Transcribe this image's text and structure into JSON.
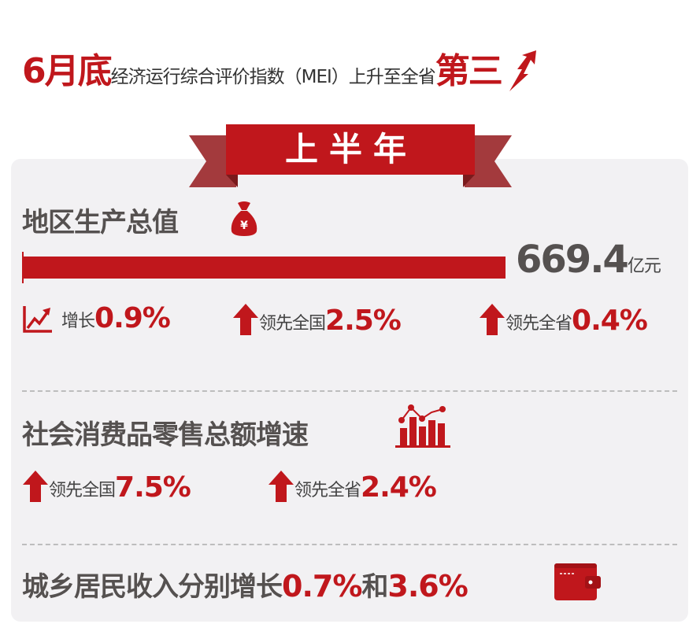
{
  "header": {
    "prefix": "6月底",
    "middle": "经济运行综合评价指数（MEI）上升至全省",
    "rank": "第三",
    "icon": "rising-arrow-icon"
  },
  "ribbon": {
    "label": "上半年"
  },
  "gdp": {
    "title": "地区生产总值",
    "icon": "money-bag-icon",
    "value": "669.4",
    "unit": "亿元",
    "stats": [
      {
        "icon": "trend-chart-icon",
        "label": "增长",
        "value": "0.9%"
      },
      {
        "icon": "arrow-up-icon",
        "label": "领先全国",
        "value": "2.5%"
      },
      {
        "icon": "arrow-up-icon",
        "label": "领先全省",
        "value": "0.4%"
      }
    ]
  },
  "retail": {
    "title": "社会消费品零售总额增速",
    "icon": "bar-line-chart-icon",
    "stats": [
      {
        "icon": "arrow-up-icon",
        "label": "领先全国",
        "value": "7.5%"
      },
      {
        "icon": "arrow-up-icon",
        "label": "领先全省",
        "value": "2.4%"
      }
    ]
  },
  "income": {
    "title": "城乡居民收入分别增长",
    "value1": "0.7%",
    "joiner": "和",
    "value2": "3.6%",
    "icon": "wallet-icon"
  },
  "colors": {
    "accent": "#c0171c",
    "text": "#555150",
    "panel": "#f2f1f3"
  }
}
